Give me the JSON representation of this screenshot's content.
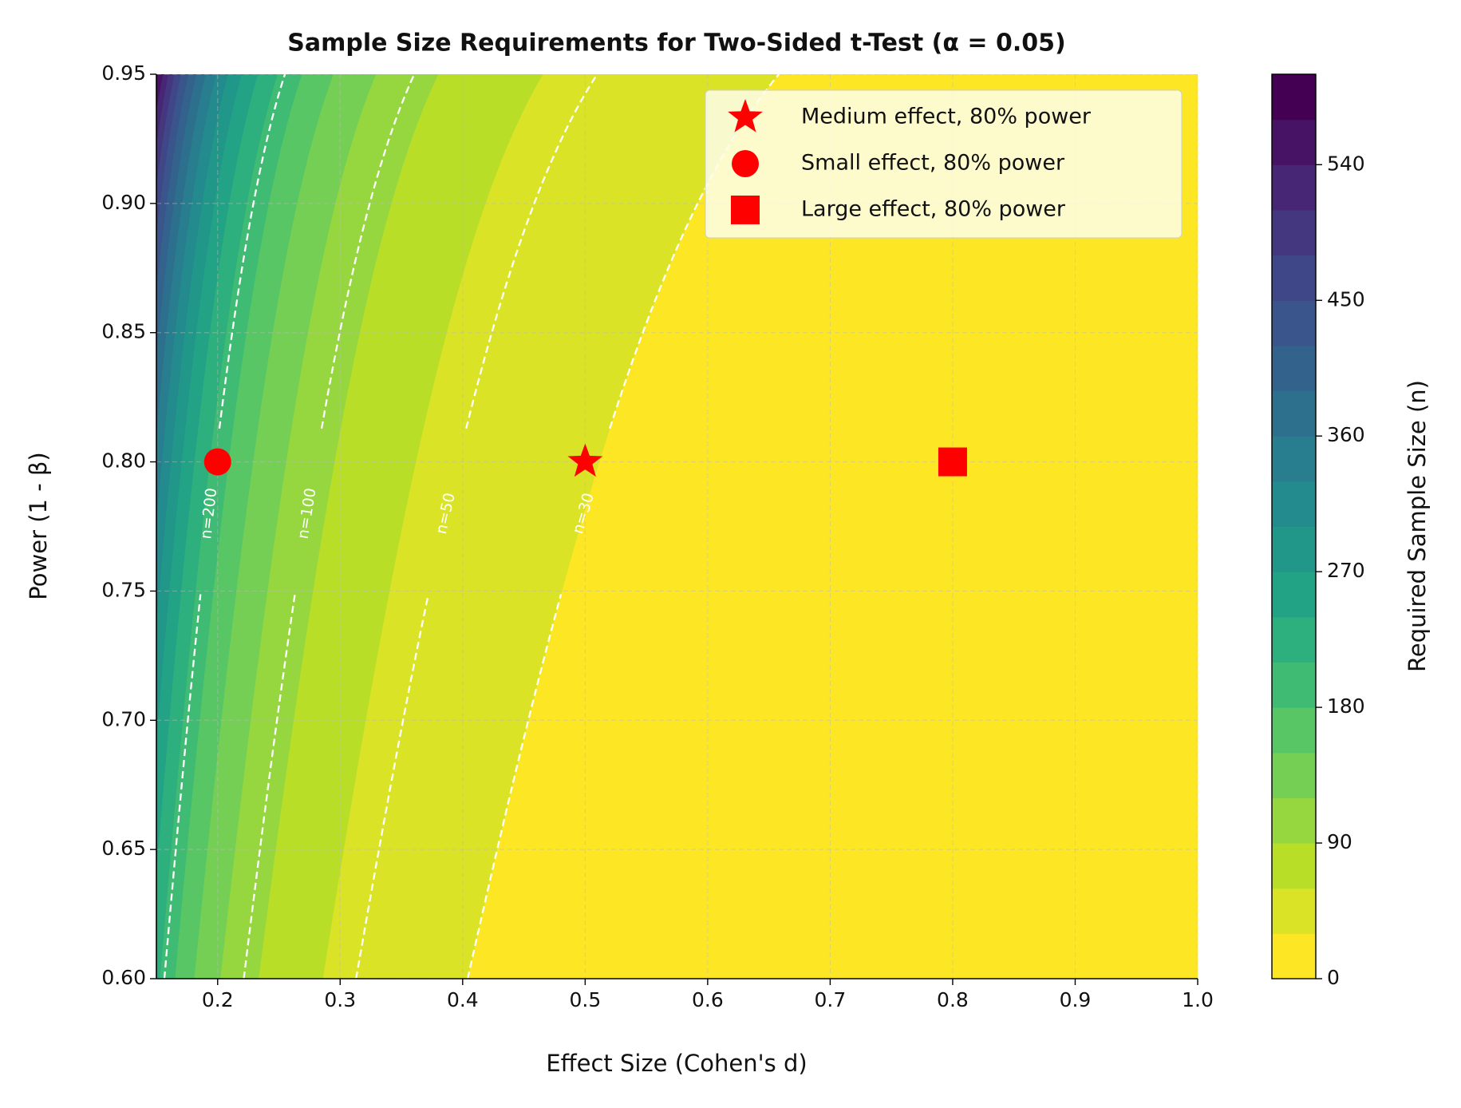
{
  "chart_data": {
    "type": "contour",
    "title": "Sample Size Requirements for Two-Sided t-Test (α = 0.05)",
    "x_label": "Effect Size (Cohen's d)",
    "y_label": "Power (1 - β)",
    "alpha": 0.05,
    "xlim": [
      0.15,
      1.0
    ],
    "ylim": [
      0.6,
      0.95
    ],
    "xticks": [
      0.2,
      0.3,
      0.4,
      0.5,
      0.6,
      0.7,
      0.8,
      0.9,
      {
        "value": 1.0,
        "label": "1.0"
      }
    ],
    "yticks": [
      {
        "value": 0.6,
        "label": "0.60"
      },
      0.65,
      {
        "value": 0.7,
        "label": "0.70"
      },
      0.75,
      {
        "value": 0.8,
        "label": "0.80"
      },
      0.85,
      {
        "value": 0.9,
        "label": "0.90"
      },
      0.95
    ],
    "grid": true,
    "colormap": "viridis_r",
    "levels": [
      0,
      30,
      60,
      90,
      120,
      150,
      180,
      210,
      240,
      270,
      300,
      330,
      360,
      390,
      420,
      450,
      480,
      510,
      540,
      570,
      600
    ],
    "colorbar": {
      "label": "Required Sample Size (n)",
      "ticks": [
        0,
        90,
        180,
        270,
        360,
        450,
        540
      ]
    },
    "contour_lines": {
      "levels": [
        30,
        50,
        100,
        200
      ],
      "labels": [
        "n=30",
        "n=50",
        "n=100",
        "n=200"
      ],
      "color": "white",
      "style": "dashed",
      "label_y": 0.78
    },
    "points": [
      {
        "name": "Medium effect, 80% power",
        "x": 0.5,
        "y": 0.8,
        "marker": "star",
        "color": "red"
      },
      {
        "name": "Small effect, 80% power",
        "x": 0.2,
        "y": 0.8,
        "marker": "circle",
        "color": "red"
      },
      {
        "name": "Large effect, 80% power",
        "x": 0.8,
        "y": 0.8,
        "marker": "square",
        "color": "red"
      }
    ],
    "legend": "upper right"
  }
}
